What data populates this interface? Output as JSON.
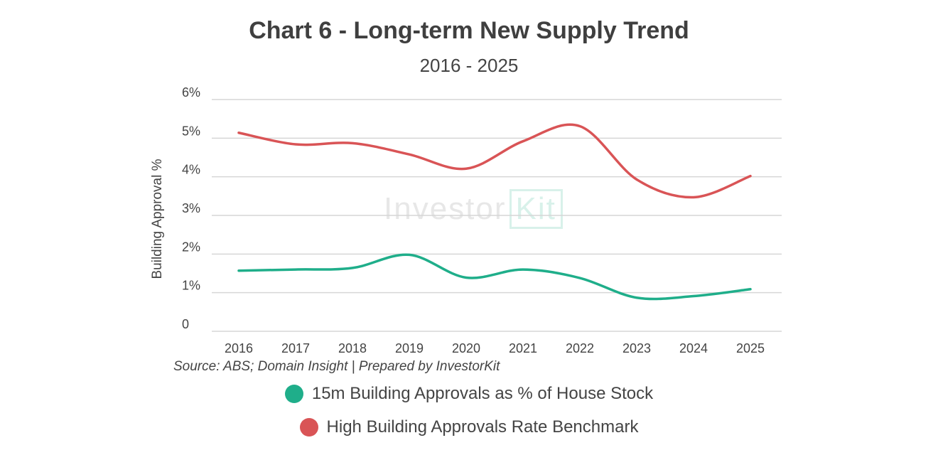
{
  "chart_data": {
    "type": "line",
    "title": "Chart 6 - Long-term New Supply Trend",
    "subtitle": "2016 - 2025",
    "ylabel": "Building Approval %",
    "xlabel": "",
    "ylim": [
      0,
      6
    ],
    "yticks": [
      "0",
      "1%",
      "2%",
      "3%",
      "4%",
      "5%",
      "6%"
    ],
    "categories": [
      "2016",
      "2017",
      "2018",
      "2019",
      "2020",
      "2021",
      "2022",
      "2023",
      "2024",
      "2025"
    ],
    "grid": true,
    "legend_position": "bottom",
    "series": [
      {
        "name": "15m Building Approvals as % of House Stock",
        "color": "#1fae8a",
        "values": [
          1.57,
          1.6,
          1.64,
          1.98,
          1.39,
          1.6,
          1.38,
          0.87,
          0.91,
          1.09
        ]
      },
      {
        "name": "High Building Approvals Rate Benchmark",
        "color": "#d95456",
        "values": [
          5.14,
          4.84,
          4.87,
          4.58,
          4.21,
          4.92,
          5.31,
          3.93,
          3.47,
          4.02
        ]
      }
    ],
    "source": "Source: ABS; Domain Insight | Prepared by InvestorKit"
  },
  "watermark": {
    "text": "Investor",
    "kit": "Kit"
  }
}
